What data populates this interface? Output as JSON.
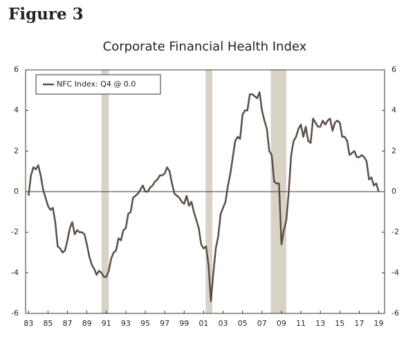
{
  "header": {
    "title": "Figure 3"
  },
  "chart_data": {
    "type": "line",
    "title": "Corporate Financial Health Index",
    "x": [
      1983,
      1983.25,
      1983.5,
      1983.75,
      1984,
      1984.25,
      1984.5,
      1984.75,
      1985,
      1985.25,
      1985.5,
      1985.75,
      1986,
      1986.25,
      1986.5,
      1986.75,
      1987,
      1987.25,
      1987.5,
      1987.75,
      1988,
      1988.25,
      1988.5,
      1988.75,
      1989,
      1989.25,
      1989.5,
      1989.75,
      1990,
      1990.25,
      1990.5,
      1990.75,
      1991,
      1991.25,
      1991.5,
      1991.75,
      1992,
      1992.25,
      1992.5,
      1992.75,
      1993,
      1993.25,
      1993.5,
      1993.75,
      1994,
      1994.25,
      1994.5,
      1994.75,
      1995,
      1995.25,
      1995.5,
      1995.75,
      1996,
      1996.25,
      1996.5,
      1996.75,
      1997,
      1997.25,
      1997.5,
      1997.75,
      1998,
      1998.25,
      1998.5,
      1998.75,
      1999,
      1999.25,
      1999.5,
      1999.75,
      2000,
      2000.25,
      2000.5,
      2000.75,
      2001,
      2001.25,
      2001.5,
      2001.75,
      2002,
      2002.25,
      2002.5,
      2002.75,
      2003,
      2003.25,
      2003.5,
      2003.75,
      2004,
      2004.25,
      2004.5,
      2004.75,
      2005,
      2005.25,
      2005.5,
      2005.75,
      2006,
      2006.25,
      2006.5,
      2006.75,
      2007,
      2007.25,
      2007.5,
      2007.75,
      2008,
      2008.25,
      2008.5,
      2008.75,
      2009,
      2009.25,
      2009.5,
      2009.75,
      2010,
      2010.25,
      2010.5,
      2010.75,
      2011,
      2011.25,
      2011.5,
      2011.75,
      2012,
      2012.25,
      2012.5,
      2012.75,
      2013,
      2013.25,
      2013.5,
      2013.75,
      2014,
      2014.25,
      2014.5,
      2014.75,
      2015,
      2015.25,
      2015.5,
      2015.75,
      2016,
      2016.25,
      2016.5,
      2016.75,
      2017,
      2017.25,
      2017.5,
      2017.75,
      2018,
      2018.25,
      2018.5,
      2018.75,
      2019
    ],
    "series": [
      {
        "name": "NFC Index: Q4 @ 0.0",
        "color": "#5a4d45",
        "values": [
          -0.2,
          0.8,
          1.2,
          1.1,
          1.3,
          0.8,
          0.1,
          -0.3,
          -0.7,
          -0.9,
          -0.8,
          -1.5,
          -2.7,
          -2.8,
          -3.0,
          -2.9,
          -2.4,
          -1.8,
          -1.5,
          -2.1,
          -1.9,
          -2.0,
          -2.0,
          -2.1,
          -2.6,
          -3.2,
          -3.6,
          -3.8,
          -4.1,
          -3.9,
          -4.0,
          -4.2,
          -4.2,
          -3.9,
          -3.3,
          -3.0,
          -2.9,
          -2.3,
          -2.4,
          -1.9,
          -1.8,
          -1.1,
          -1.0,
          -0.3,
          -0.2,
          -0.1,
          0.1,
          0.3,
          0.0,
          0.0,
          0.2,
          0.3,
          0.5,
          0.6,
          0.8,
          0.8,
          0.9,
          1.2,
          1.0,
          0.4,
          -0.1,
          -0.2,
          -0.3,
          -0.5,
          -0.6,
          -0.2,
          -0.7,
          -0.5,
          -1.0,
          -1.4,
          -1.8,
          -2.6,
          -2.8,
          -2.7,
          -3.6,
          -5.4,
          -4.0,
          -2.8,
          -2.2,
          -1.1,
          -0.8,
          -0.5,
          0.3,
          0.9,
          1.7,
          2.5,
          2.7,
          2.6,
          3.8,
          4.0,
          4.0,
          4.8,
          4.8,
          4.7,
          4.6,
          4.9,
          4.0,
          3.5,
          3.1,
          2.0,
          1.8,
          0.5,
          0.4,
          0.4,
          -2.6,
          -1.9,
          -1.4,
          0.0,
          1.8,
          2.5,
          2.7,
          3.1,
          3.3,
          2.7,
          3.2,
          2.5,
          2.4,
          3.6,
          3.4,
          3.2,
          3.2,
          3.5,
          3.3,
          3.5,
          3.6,
          3.0,
          3.4,
          3.5,
          3.4,
          2.7,
          2.7,
          2.5,
          1.8,
          1.9,
          2.0,
          1.7,
          1.7,
          1.8,
          1.7,
          1.5,
          0.6,
          0.7,
          0.3,
          0.4,
          0.0
        ]
      }
    ],
    "xlim": [
      1982.7,
      2019.6
    ],
    "xticks": [
      {
        "value": 1983,
        "label": "83"
      },
      {
        "value": 1985,
        "label": "85"
      },
      {
        "value": 1987,
        "label": "87"
      },
      {
        "value": 1989,
        "label": "89"
      },
      {
        "value": 1991,
        "label": "91"
      },
      {
        "value": 1993,
        "label": "93"
      },
      {
        "value": 1995,
        "label": "95"
      },
      {
        "value": 1997,
        "label": "97"
      },
      {
        "value": 1999,
        "label": "99"
      },
      {
        "value": 2001,
        "label": "01"
      },
      {
        "value": 2003,
        "label": "03"
      },
      {
        "value": 2005,
        "label": "05"
      },
      {
        "value": 2007,
        "label": "07"
      },
      {
        "value": 2009,
        "label": "09"
      },
      {
        "value": 2011,
        "label": "11"
      },
      {
        "value": 2013,
        "label": "13"
      },
      {
        "value": 2015,
        "label": "15"
      },
      {
        "value": 2017,
        "label": "17"
      },
      {
        "value": 2019,
        "label": "19"
      }
    ],
    "ylim": [
      -6,
      6
    ],
    "yticks": [
      -6,
      -4,
      -2,
      0,
      2,
      4,
      6
    ],
    "y2lim": [
      -6,
      6
    ],
    "y2ticks": [
      -6,
      -4,
      -2,
      0,
      2,
      4,
      6
    ],
    "shaded_periods": [
      [
        1990.5,
        1991.25
      ],
      [
        2001.2,
        2001.9
      ],
      [
        2007.9,
        2009.5
      ]
    ],
    "shade_color": "#d9d3c7",
    "legend": "upper left",
    "zero_line": true
  }
}
